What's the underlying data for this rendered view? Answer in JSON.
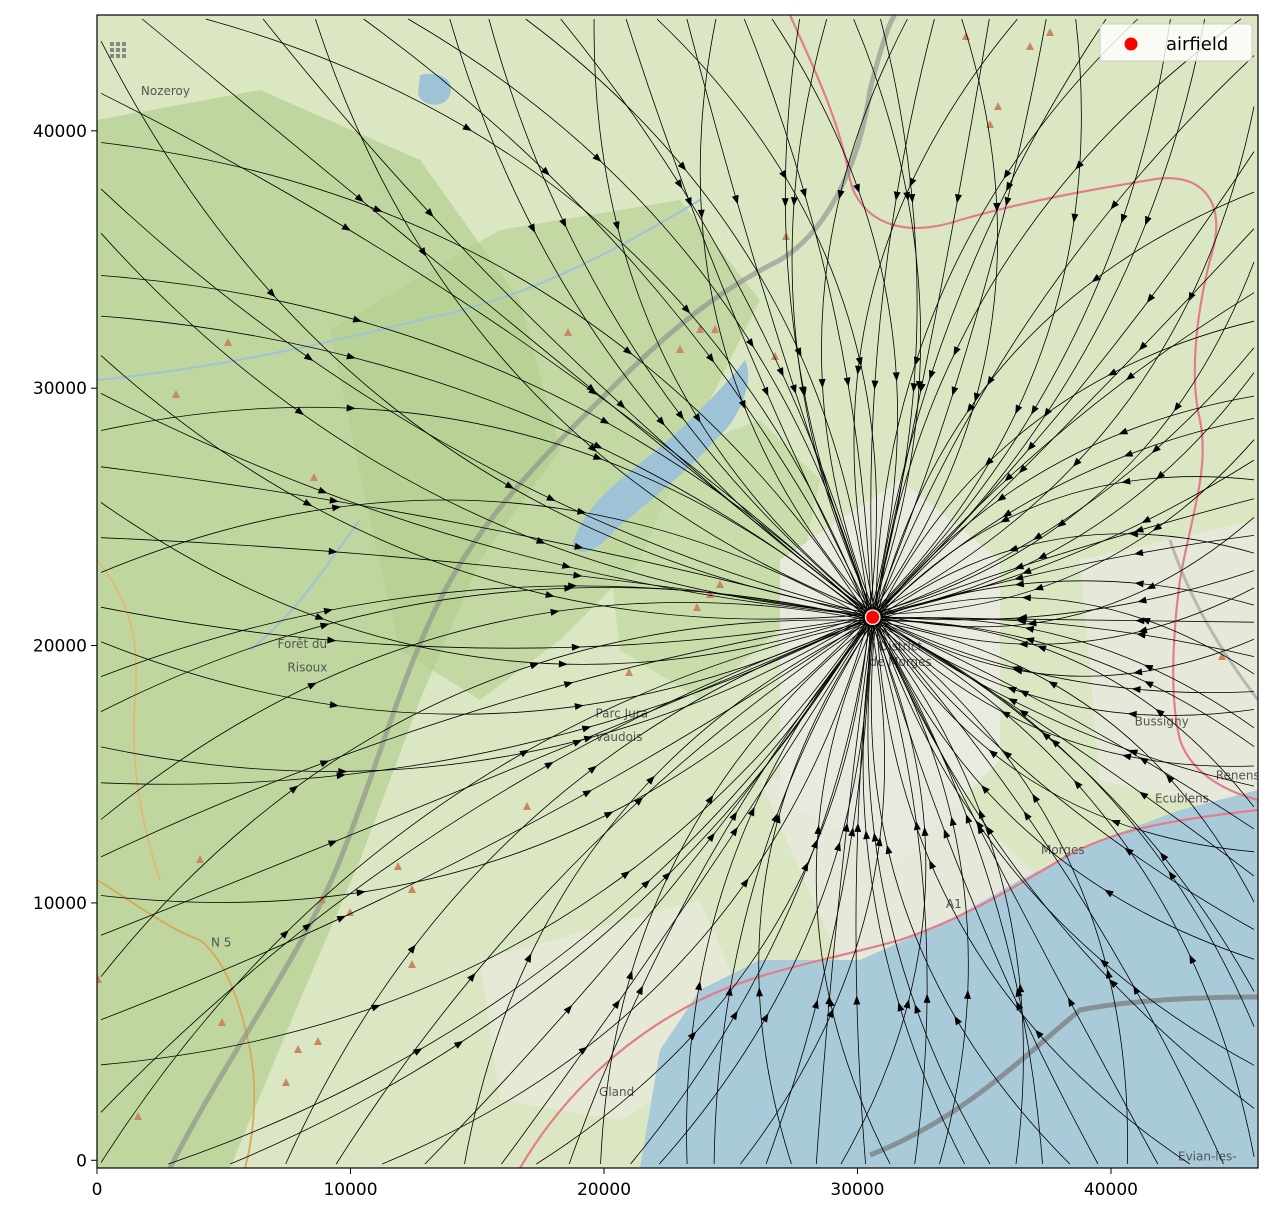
{
  "chart_data": {
    "type": "streamplot",
    "title": "",
    "xlabel": "",
    "ylabel": "",
    "xlim": [
      0,
      45800
    ],
    "ylim": [
      -300,
      44500
    ],
    "xticks": [
      0,
      10000,
      20000,
      30000,
      40000
    ],
    "yticks": [
      0,
      10000,
      20000,
      30000,
      40000
    ],
    "xtick_labels": [
      "0",
      "10000",
      "20000",
      "30000",
      "40000"
    ],
    "ytick_labels": [
      "0",
      "10000",
      "20000",
      "30000",
      "40000"
    ],
    "grid": false,
    "legend": {
      "position": "top-right",
      "entries": [
        "airfield"
      ]
    },
    "series": [
      {
        "name": "airfield",
        "kind": "scatter",
        "color": "#ff0000",
        "points": [
          [
            30600,
            21100
          ]
        ]
      },
      {
        "name": "flow field",
        "kind": "streamlines",
        "color": "#000000",
        "description": "radial flow converging toward the airfield"
      }
    ],
    "basemap": {
      "labels": [
        {
          "text": "Nozeroy",
          "x": 2700,
          "y": 41400
        },
        {
          "text": "Forêt du",
          "x": 8100,
          "y": 19900
        },
        {
          "text": "Risoux",
          "x": 8300,
          "y": 19000
        },
        {
          "text": "Parc Jura",
          "x": 20700,
          "y": 17200
        },
        {
          "text": "vaudois",
          "x": 20600,
          "y": 16300
        },
        {
          "text": "District",
          "x": 31700,
          "y": 19800
        },
        {
          "text": "de Morges",
          "x": 31700,
          "y": 19200
        },
        {
          "text": "Bussigny",
          "x": 42000,
          "y": 16900
        },
        {
          "text": "Renens",
          "x": 45000,
          "y": 14800
        },
        {
          "text": "Ecublens",
          "x": 42800,
          "y": 13900
        },
        {
          "text": "Morges",
          "x": 38100,
          "y": 11900
        },
        {
          "text": "Gland",
          "x": 20500,
          "y": 2500
        },
        {
          "text": "Evian-les-",
          "x": 43800,
          "y": 0
        },
        {
          "text": "N 5",
          "x": 4900,
          "y": 8300
        },
        {
          "text": "A1",
          "x": 33800,
          "y": 9800
        }
      ]
    }
  }
}
